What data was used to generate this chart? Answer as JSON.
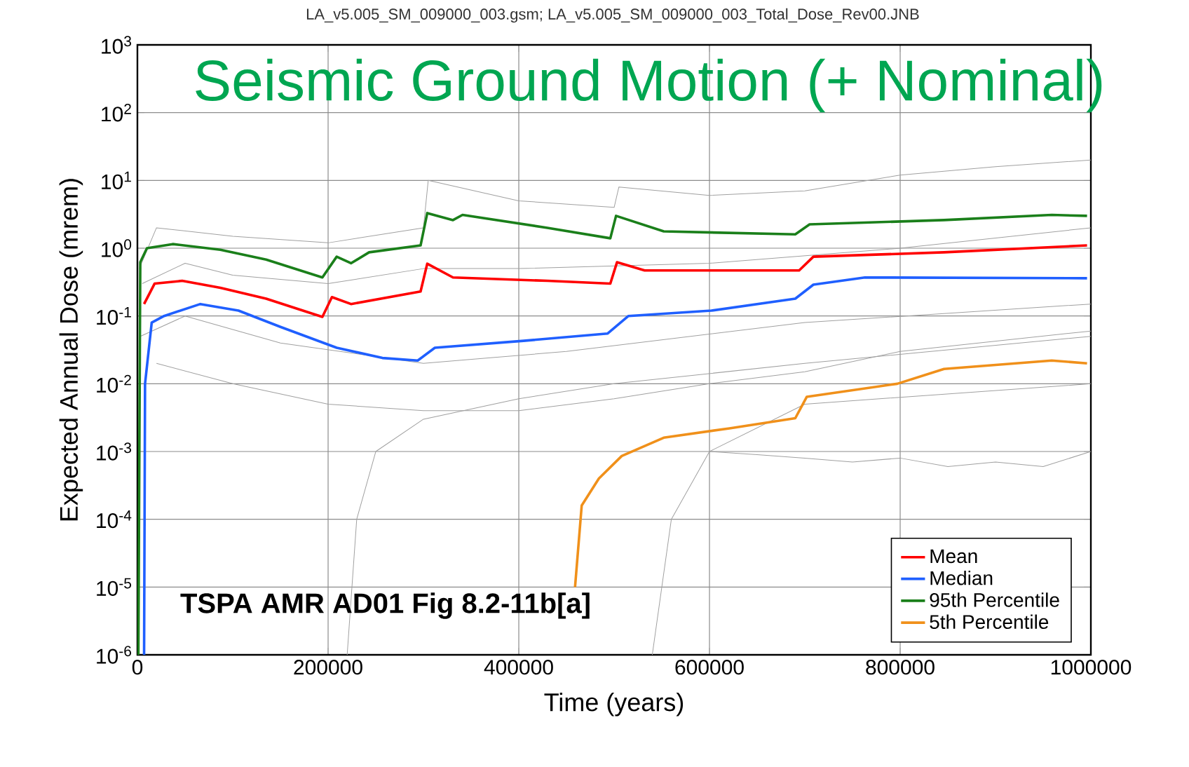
{
  "chart_data": {
    "type": "line",
    "title": "Seismic Ground Motion (+ Nominal)",
    "xlabel": "Time (years)",
    "ylabel": "Expected Annual Dose (mrem)",
    "annotations": [
      "LA_v5.005_SM_009000_003.gsm; LA_v5.005_SM_009000_003_Total_Dose_Rev00.JNB",
      "TSPA AMR AD01 Fig 8.2-11b[a]"
    ],
    "log": "y",
    "grid": true,
    "legend": "bottom right",
    "marker": "none",
    "line_style": "solid",
    "xlim": [
      0,
      1000000
    ],
    "xticks": [
      0,
      200000,
      400000,
      600000,
      800000,
      1000000
    ],
    "ylim": [
      1e-06,
      1000
    ],
    "yticks": [
      {
        "value": 1e-06,
        "label": "10$^{-6}$"
      },
      {
        "value": 1e-05,
        "label": "10$^{-5}$"
      },
      {
        "value": 0.0001,
        "label": "10$^{-4}$"
      },
      {
        "value": 0.001,
        "label": "10$^{-3}$"
      },
      {
        "value": 0.01,
        "label": "10$^{-2}$"
      },
      {
        "value": 0.1,
        "label": "10$^{-1}$"
      },
      {
        "value": 1,
        "label": "10$^{0}$"
      },
      {
        "value": 10,
        "label": "10$^{1}$"
      },
      {
        "value": 100,
        "label": "10$^{2}$"
      },
      {
        "value": 1000,
        "label": "10$^{3}$"
      }
    ],
    "series": [
      {
        "color": "#a0a0a0",
        "x": [
          2000,
          20000,
          100000,
          200000,
          300000,
          305000,
          400000,
          500000,
          505000,
          600000,
          700000,
          800000,
          900000,
          1000000
        ],
        "values": [
          0.5,
          2,
          1.5,
          1.2,
          2,
          10,
          5,
          4,
          8,
          6,
          7,
          12,
          16,
          20
        ]
      },
      {
        "color": "#a0a0a0",
        "x": [
          20000,
          100000,
          200000,
          300000,
          400000,
          500000,
          600000,
          700000,
          800000,
          1000000
        ],
        "values": [
          0.02,
          0.01,
          0.005,
          0.004,
          0.004,
          0.006,
          0.01,
          0.015,
          0.03,
          0.06
        ]
      },
      {
        "color": "#a0a0a0",
        "x": [
          600000,
          650000,
          700000,
          750000,
          800000,
          850000,
          900000,
          950000,
          1000000
        ],
        "values": [
          0.001,
          0.0009,
          0.0008,
          0.0007,
          0.0008,
          0.0006,
          0.0007,
          0.0006,
          0.001
        ]
      },
      {
        "color": "#a0a0a0",
        "x": [
          220000,
          230000,
          250000,
          300000,
          400000,
          500000,
          700000,
          1000000
        ],
        "values": [
          1e-06,
          0.0001,
          0.001,
          0.003,
          0.006,
          0.01,
          0.02,
          0.05
        ]
      },
      {
        "color": "#a0a0a0",
        "x": [
          5000,
          50000,
          100000,
          200000,
          300000,
          400000,
          600000,
          800000,
          1000000
        ],
        "values": [
          0.3,
          0.6,
          0.4,
          0.3,
          0.5,
          0.5,
          0.6,
          1,
          2
        ]
      },
      {
        "color": "#a0a0a0",
        "x": [
          3000,
          50000,
          150000,
          300000,
          450000,
          700000,
          1000000
        ],
        "values": [
          0.05,
          0.1,
          0.04,
          0.02,
          0.03,
          0.08,
          0.15
        ]
      },
      {
        "color": "#a0a0a0",
        "x": [
          540000,
          560000,
          600000,
          700000,
          1000000
        ],
        "values": [
          1e-06,
          0.0001,
          0.001,
          0.005,
          0.01
        ]
      },
      {
        "name": "Mean",
        "color": "#ff0000",
        "x": [
          7000,
          18000,
          47000,
          87000,
          135000,
          194000,
          204000,
          224000,
          297000,
          304000,
          331000,
          430000,
          496000,
          503000,
          532000,
          650000,
          694000,
          709000,
          846000,
          996000
        ],
        "values": [
          0.15,
          0.3,
          0.33,
          0.26,
          0.18,
          0.097,
          0.19,
          0.15,
          0.23,
          0.59,
          0.37,
          0.33,
          0.3,
          0.62,
          0.47,
          0.47,
          0.47,
          0.75,
          0.87,
          1.1
        ]
      },
      {
        "name": "Median",
        "color": "#1f5fff",
        "x": [
          7000,
          8000,
          15000,
          28000,
          66000,
          106000,
          150000,
          209000,
          257000,
          294000,
          312000,
          405000,
          493000,
          515000,
          602000,
          690000,
          709000,
          763000,
          996000
        ],
        "values": [
          1e-06,
          0.01,
          0.08,
          0.1,
          0.15,
          0.12,
          0.069,
          0.034,
          0.024,
          0.022,
          0.034,
          0.043,
          0.055,
          0.1,
          0.12,
          0.18,
          0.29,
          0.37,
          0.36
        ]
      },
      {
        "name": "95th Percentile",
        "color": "#1a7f1a",
        "x": [
          1000,
          3000,
          10000,
          37000,
          87000,
          135000,
          194000,
          209000,
          224000,
          243000,
          297000,
          304000,
          331000,
          341000,
          430000,
          496000,
          502000,
          552000,
          690000,
          705000,
          846000,
          959000,
          996000
        ],
        "values": [
          1e-06,
          0.62,
          1.0,
          1.15,
          0.95,
          0.68,
          0.37,
          0.75,
          0.6,
          0.87,
          1.1,
          3.3,
          2.6,
          3.1,
          2.0,
          1.4,
          3.0,
          1.77,
          1.6,
          2.25,
          2.6,
          3.1,
          3.0
        ]
      },
      {
        "name": "5th Percentile",
        "color": "#f0901a",
        "x": [
          459000,
          466000,
          484000,
          508000,
          552000,
          621000,
          690000,
          702000,
          797000,
          846000,
          959000,
          996000
        ],
        "values": [
          1e-05,
          0.00016,
          0.0004,
          0.00086,
          0.0016,
          0.0022,
          0.0031,
          0.0064,
          0.01,
          0.0165,
          0.022,
          0.02
        ]
      }
    ]
  }
}
